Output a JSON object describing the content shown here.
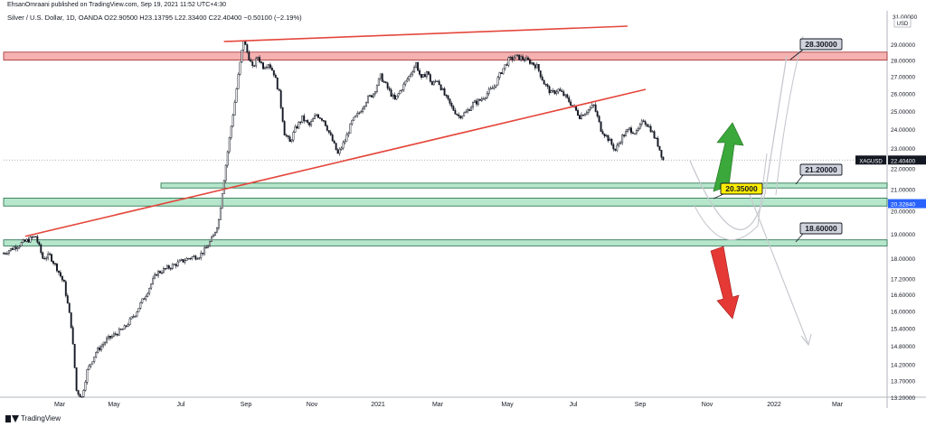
{
  "header": {
    "publisher_line": "EhsanOmraani published on TradingView.com, Sep 19, 2021 11:52 UTC+4:30",
    "symbol_line": "Silver / U.S. Dollar, 1D, OANDA  O22.90500  H23.13795  L22.33400  C22.40400  −0.50100 (−2.19%)"
  },
  "footer": {
    "brand": "TradingView"
  },
  "chart_data": {
    "type": "candlestick",
    "x_ticks": [
      "Mar",
      "May",
      "Jul",
      "Sep",
      "Nov",
      "2021",
      "Mar",
      "May",
      "Jul",
      "Sep",
      "Nov",
      "2022",
      "Mar"
    ],
    "y_ticks": [
      "31.00000",
      "29.00000",
      "28.00000",
      "27.00000",
      "26.00000",
      "25.00000",
      "24.00000",
      "23.00000",
      "22.00000",
      "21.00000",
      "20.00000",
      "19.00000",
      "18.00000",
      "17.20000",
      "16.60000",
      "16.00000",
      "15.40000",
      "14.80000",
      "14.20000",
      "13.70000",
      "13.20000"
    ],
    "y_scale": "log",
    "y_range": [
      13.2,
      31.0
    ],
    "currency_label": "USD",
    "price_tag": {
      "label": "XAGUSD",
      "value": "22.40400",
      "price": 22.404
    },
    "level_tag": {
      "value": "20.32840",
      "price": 20.3284
    },
    "price_path": [
      [
        0,
        18.2
      ],
      [
        10,
        18.6
      ],
      [
        18,
        18.9
      ],
      [
        22,
        18.0
      ],
      [
        26,
        18.1
      ],
      [
        30,
        17.6
      ],
      [
        34,
        17.0
      ],
      [
        38,
        15.5
      ],
      [
        41,
        13.4
      ],
      [
        44,
        13.2
      ],
      [
        47,
        14.0
      ],
      [
        52,
        14.6
      ],
      [
        58,
        15.0
      ],
      [
        63,
        15.2
      ],
      [
        68,
        15.4
      ],
      [
        74,
        15.9
      ],
      [
        80,
        16.6
      ],
      [
        86,
        17.4
      ],
      [
        92,
        17.6
      ],
      [
        98,
        17.8
      ],
      [
        104,
        18.0
      ],
      [
        110,
        18.1
      ],
      [
        114,
        18.4
      ],
      [
        118,
        18.9
      ],
      [
        121,
        19.6
      ],
      [
        124,
        21.5
      ],
      [
        127,
        23.5
      ],
      [
        130,
        25.5
      ],
      [
        133,
        27.8
      ],
      [
        135,
        29.3
      ],
      [
        137,
        28.5
      ],
      [
        140,
        27.5
      ],
      [
        143,
        28.2
      ],
      [
        146,
        27.6
      ],
      [
        149,
        27.8
      ],
      [
        152,
        27.2
      ],
      [
        155,
        26.0
      ],
      [
        158,
        23.8
      ],
      [
        161,
        23.3
      ],
      [
        164,
        24.0
      ],
      [
        168,
        24.6
      ],
      [
        172,
        24.2
      ],
      [
        176,
        24.8
      ],
      [
        180,
        24.5
      ],
      [
        184,
        23.6
      ],
      [
        188,
        22.7
      ],
      [
        192,
        23.4
      ],
      [
        196,
        24.4
      ],
      [
        200,
        24.9
      ],
      [
        204,
        25.6
      ],
      [
        208,
        26.0
      ],
      [
        212,
        27.0
      ],
      [
        216,
        26.3
      ],
      [
        220,
        25.6
      ],
      [
        224,
        26.3
      ],
      [
        228,
        27.0
      ],
      [
        232,
        27.8
      ],
      [
        235,
        26.8
      ],
      [
        238,
        27.3
      ],
      [
        241,
        26.5
      ],
      [
        244,
        26.8
      ],
      [
        248,
        25.9
      ],
      [
        252,
        25.2
      ],
      [
        256,
        24.7
      ],
      [
        260,
        24.9
      ],
      [
        264,
        25.4
      ],
      [
        268,
        25.6
      ],
      [
        272,
        26.0
      ],
      [
        276,
        26.4
      ],
      [
        280,
        27.3
      ],
      [
        284,
        28.0
      ],
      [
        288,
        28.2
      ],
      [
        292,
        28.1
      ],
      [
        296,
        27.9
      ],
      [
        300,
        27.6
      ],
      [
        304,
        26.6
      ],
      [
        308,
        26.0
      ],
      [
        312,
        26.2
      ],
      [
        316,
        25.8
      ],
      [
        320,
        25.3
      ],
      [
        324,
        24.7
      ],
      [
        328,
        25.0
      ],
      [
        332,
        25.3
      ],
      [
        336,
        24.0
      ],
      [
        340,
        23.5
      ],
      [
        344,
        22.9
      ],
      [
        348,
        23.6
      ],
      [
        352,
        24.0
      ],
      [
        356,
        23.8
      ],
      [
        360,
        24.5
      ],
      [
        364,
        24.0
      ],
      [
        368,
        23.2
      ],
      [
        371,
        22.404
      ]
    ],
    "annotations": {
      "resistance_zone": [
        28.0,
        28.5
      ],
      "zone_21": [
        21.05,
        21.28
      ],
      "zone_20": [
        20.22,
        20.58
      ],
      "zone_18_6": [
        18.5,
        18.75
      ],
      "tops_line": [
        [
          130,
          29.3
        ],
        [
          320,
          31.0
        ]
      ],
      "rising_trendline": [
        [
          10,
          18.9
        ],
        [
          330,
          26.3
        ]
      ],
      "callouts": [
        {
          "label": "28.30000",
          "price": 28.3
        },
        {
          "label": "21.20000",
          "price": 21.2
        },
        {
          "label": "20.35000",
          "price": 20.35
        },
        {
          "label": "18.60000",
          "price": 18.6
        }
      ],
      "arrow_up_color": "#3aa83a",
      "arrow_down_color": "#e53935"
    },
    "colors": {
      "candle": "#131722",
      "resistance_fill": "#f4a3a3",
      "support_fill": "#a9e3c4",
      "trendline": "#e4473c",
      "price_tag_bg": "#131722",
      "level_tag_bg": "#2962ff",
      "callout_bg": "#d1d4dc",
      "callout_yellow": "#ffee00"
    }
  }
}
